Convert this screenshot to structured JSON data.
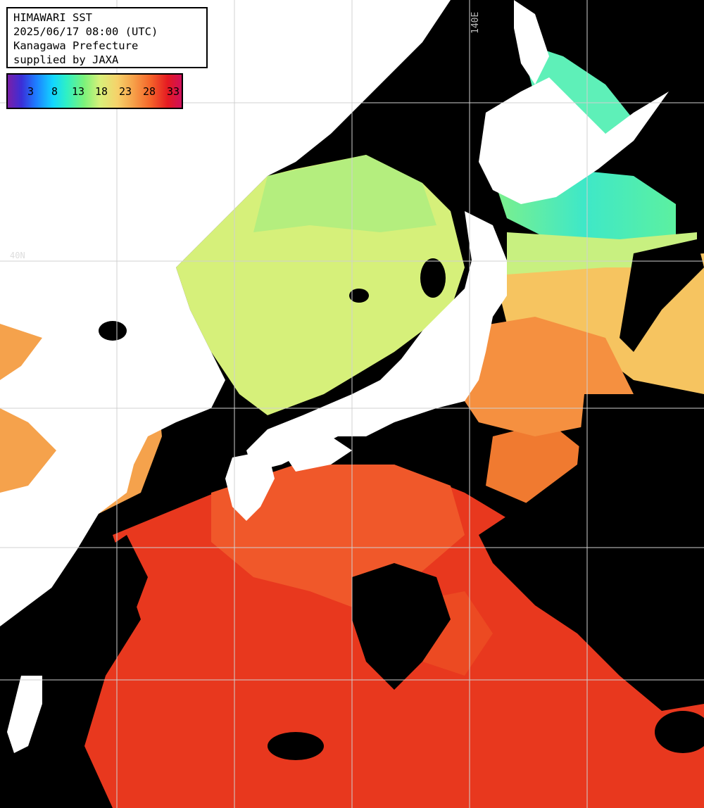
{
  "info": {
    "title": "HIMAWARI SST",
    "timestamp": "2025/06/17 08:00 (UTC)",
    "region": "Kanagawa Prefecture",
    "credit": "supplied by JAXA"
  },
  "legend": {
    "labels": [
      "3",
      "8",
      "13",
      "18",
      "23",
      "28",
      "33"
    ],
    "colors": {
      "cold": "#7a1fa8",
      "cool": "#12d6ff",
      "mild": "#7cf27a",
      "warm": "#f6a24a",
      "hot": "#e51a22"
    }
  },
  "grid": {
    "lon_label": "140E",
    "lat_label": "40N"
  },
  "palette": {
    "land": "#ffffff",
    "cloud": "#000000",
    "gridline": "#d0d0d0"
  }
}
